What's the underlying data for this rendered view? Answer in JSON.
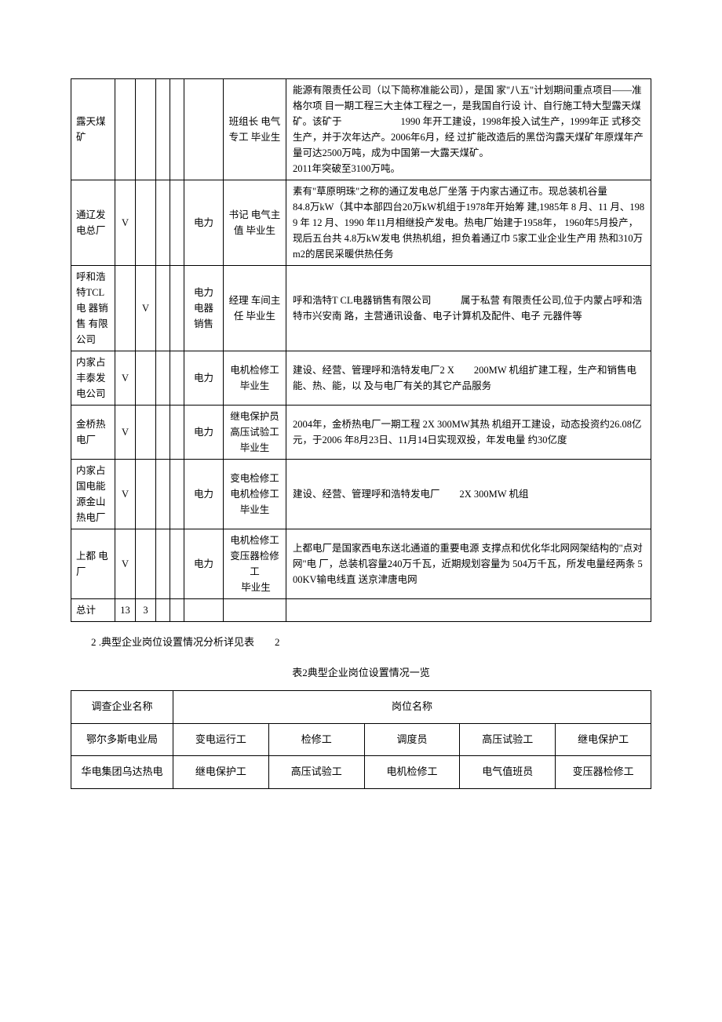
{
  "table1": {
    "rows": [
      {
        "name": "露天煤 矿",
        "c1": "",
        "c2": "",
        "c3": "",
        "c4": "",
        "industry": "",
        "positions": "班组长 电气专工 毕业生",
        "desc": "能源有限责任公司（以下简称准能公司），是国 家\"八五\"计划期间重点项目——准格尔项 目一期工程三大主体工程之一，是我国自行设 计、自行施工特大型露天煤矿。该矿于　　　　　　1990 年开工建设，1998年投入试生产，1999年正 式移交生产，并于次年达产。2006年6月，经 过扩能改造后的黑岱沟露天煤矿年原煤年产 量可达2500万吨，成为中国第一大露天煤矿。\n2011年突破至3100万吨。"
      },
      {
        "name": "通辽发 电总厂",
        "c1": "V",
        "c2": "",
        "c3": "",
        "c4": "",
        "industry": "电力",
        "positions": "书记 电气主值 毕业生",
        "desc": "素有\"草原明珠\"之称的通辽发电总厂坐落 于内家古通辽市。现总装机谷量　　　　84.8万kW（其中本部四台20万kW机组于1978年开始筹 建,1985年 8 月、11 月、1989 年 12 月、1990 年11月相继投产发电。热电厂始建于1958年， 1960年5月投产，现后五台共 4.8万kW发电 供热机组，担负着通辽巾 5家工业企业生产用 热和310万m2的居民采暖供热任务"
      },
      {
        "name": "呼和浩 特TCL 电 器销　售 有限　公司",
        "c1": "",
        "c2": "V",
        "c3": "",
        "c4": "",
        "industry": "电力 电器 销售",
        "positions": "经理 车间主任 毕业生",
        "desc": "呼和浩特T CL电器销售有限公司　　　属于私营 有限责任公司,位于内蒙占呼和浩特市兴安南 路，主营通讯设备、电子计算机及配件、电子 元器件等"
      },
      {
        "name": "内家占 丰泰发 电公司",
        "c1": "V",
        "c2": "",
        "c3": "",
        "c4": "",
        "industry": "电力",
        "positions": "电机检修工 毕业生",
        "desc": "建设、经营、管理呼和浩特发电厂2 X　　200MW 机组扩建工程，生产和销售电能、热、能，以 及与电厂有关的其它产品服务"
      },
      {
        "name": "金桥热 电厂",
        "c1": "V",
        "c2": "",
        "c3": "",
        "c4": "",
        "industry": "电力",
        "positions": "继电保护员 高压试验工 毕业生",
        "desc": "2004年，金桥热电厂一期工程 2X 300MW其热 机组开工建设，动态投资约26.08亿元，于2006 年8月23日、11月14日实现双投，年发电量 约30亿度"
      },
      {
        "name": "内家占 国电能 源金山 热电厂",
        "c1": "V",
        "c2": "",
        "c3": "",
        "c4": "",
        "industry": "电力",
        "positions": "变电检修工 电机检修工 毕业生",
        "desc": "建设、经营、管理呼和浩特发电厂　　2X 300MW 机组"
      },
      {
        "name": "上都 电厂",
        "c1": "V",
        "c2": "",
        "c3": "",
        "c4": "",
        "industry": "电力",
        "positions": "电机检修工 变压器检修工\n 毕业生",
        "desc": "上都电厂是国家西电东送北通道的重要电源 支撑点和优化华北网网架结构的\"点对网\"电 厂，总装机容量240万千瓦，近期规划容量为 504万千瓦，所发电量经两条 500KV输电线直 送京津唐电网"
      }
    ],
    "total": {
      "label": "总计",
      "c1": "13",
      "c2": "3",
      "c3": "",
      "c4": "",
      "c5": "",
      "c6": "",
      "c7": ""
    }
  },
  "paragraph": "2 .典型企业岗位设置情况分析详见表　　2",
  "caption2": "表2典型企业岗位设置情况一览",
  "table2": {
    "header": {
      "h0": "调查企业名称",
      "h1": "岗位名称"
    },
    "rows": [
      {
        "name": "鄂尔多斯电业局",
        "p": [
          "变电运行工",
          "检修工",
          "调度员",
          "高压试验工",
          "继电保护工"
        ]
      },
      {
        "name": "华电集团乌达热电",
        "p": [
          "继电保护工",
          "高压试验工",
          "电机检修工",
          "电气值班员",
          "变压器检修工"
        ]
      }
    ]
  }
}
